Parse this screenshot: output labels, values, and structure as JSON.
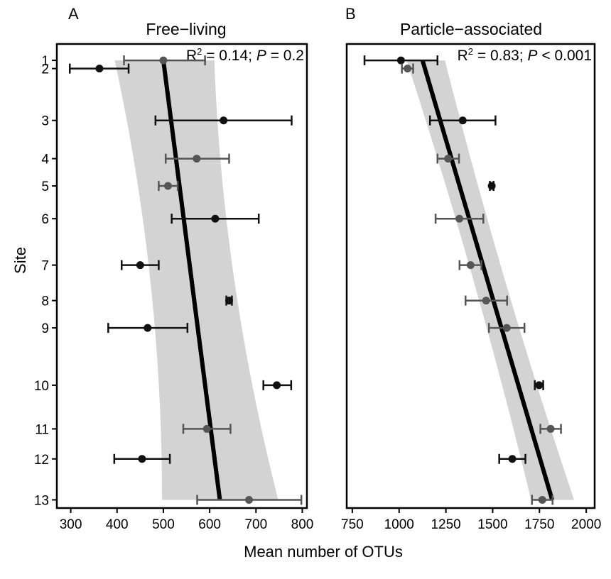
{
  "figure": {
    "ylabel": "Site",
    "xlabel": "Mean number of OTUs",
    "colors": {
      "band": "#d3d3d3",
      "fit_line": "#000000",
      "point_dark": "#111111",
      "point_gray": "#555555"
    }
  },
  "chart_data": [
    {
      "type": "scatter",
      "panel": "A",
      "title": "Free−living",
      "stat": {
        "r2_prefix": "R",
        "r2_sup": "2",
        "r2_value": " = 0.14; ",
        "p_symbol": "P",
        "p_value": " = 0.2"
      },
      "xlabel": "Mean number of OTUs",
      "ylabel": "Site",
      "xlim": [
        270,
        810
      ],
      "xticks": [
        300,
        400,
        500,
        600,
        700,
        800
      ],
      "xtick_labels": [
        "300",
        "400",
        "500",
        "600",
        "700",
        "800"
      ],
      "y_sites": [
        1,
        2,
        3,
        4,
        5,
        6,
        7,
        8,
        9,
        10,
        11,
        12,
        13
      ],
      "y_positions": [
        1.0,
        1.3,
        3.2,
        4.6,
        5.6,
        6.8,
        8.5,
        9.8,
        10.8,
        12.9,
        14.5,
        15.6,
        17.1
      ],
      "ylim": [
        0.4,
        17.4
      ],
      "points": [
        {
          "site": "1",
          "mean": 500,
          "lo": 415,
          "hi": 590,
          "shade": "gray"
        },
        {
          "site": "2",
          "mean": 362,
          "lo": 298,
          "hi": 425,
          "shade": "dark"
        },
        {
          "site": "3",
          "mean": 630,
          "lo": 483,
          "hi": 777,
          "shade": "dark"
        },
        {
          "site": "4",
          "mean": 572,
          "lo": 505,
          "hi": 642,
          "shade": "gray"
        },
        {
          "site": "5",
          "mean": 510,
          "lo": 490,
          "hi": 531,
          "shade": "gray"
        },
        {
          "site": "6",
          "mean": 612,
          "lo": 518,
          "hi": 706,
          "shade": "dark"
        },
        {
          "site": "7",
          "mean": 450,
          "lo": 410,
          "hi": 490,
          "shade": "dark"
        },
        {
          "site": "8",
          "mean": 642,
          "lo": 636,
          "hi": 648,
          "shade": "dark"
        },
        {
          "site": "9",
          "mean": 466,
          "lo": 381,
          "hi": 552,
          "shade": "dark"
        },
        {
          "site": "10",
          "mean": 745,
          "lo": 716,
          "hi": 776,
          "shade": "dark"
        },
        {
          "site": "11",
          "mean": 594,
          "lo": 543,
          "hi": 645,
          "shade": "gray"
        },
        {
          "site": "12",
          "mean": 454,
          "lo": 394,
          "hi": 514,
          "shade": "dark"
        },
        {
          "site": "13",
          "mean": 685,
          "lo": 573,
          "hi": 798,
          "shade": "gray"
        }
      ],
      "fit": {
        "x_top": 500,
        "x_bottom": 622
      },
      "band": {
        "top_lo": 395,
        "top_hi": 610,
        "bottom_lo": 497,
        "bottom_hi": 748
      }
    },
    {
      "type": "scatter",
      "panel": "B",
      "title": "Particle−associated",
      "stat": {
        "r2_prefix": "R",
        "r2_sup": "2",
        "r2_value": " = 0.83; ",
        "p_symbol": "P",
        "p_value": " < 0.001"
      },
      "xlabel": "Mean number of OTUs",
      "ylabel": "Site",
      "xlim": [
        720,
        2045
      ],
      "xticks": [
        750,
        1000,
        1250,
        1500,
        1750,
        2000
      ],
      "xtick_labels": [
        "750",
        "1000",
        "1250",
        "1500",
        "1750",
        "2000"
      ],
      "y_sites": [
        1,
        2,
        3,
        4,
        5,
        6,
        7,
        8,
        9,
        10,
        11,
        12,
        13
      ],
      "y_positions": [
        1.0,
        1.3,
        3.2,
        4.6,
        5.6,
        6.8,
        8.5,
        9.8,
        10.8,
        12.9,
        14.5,
        15.6,
        17.1
      ],
      "ylim": [
        0.4,
        17.4
      ],
      "points": [
        {
          "site": "1",
          "mean": 1010,
          "lo": 815,
          "hi": 1205,
          "shade": "dark"
        },
        {
          "site": "2",
          "mean": 1045,
          "lo": 1015,
          "hi": 1075,
          "shade": "gray"
        },
        {
          "site": "3",
          "mean": 1340,
          "lo": 1165,
          "hi": 1515,
          "shade": "dark"
        },
        {
          "site": "4",
          "mean": 1262,
          "lo": 1205,
          "hi": 1320,
          "shade": "gray"
        },
        {
          "site": "5",
          "mean": 1495,
          "lo": 1485,
          "hi": 1505,
          "shade": "dark"
        },
        {
          "site": "6",
          "mean": 1322,
          "lo": 1195,
          "hi": 1450,
          "shade": "gray"
        },
        {
          "site": "7",
          "mean": 1382,
          "lo": 1323,
          "hi": 1440,
          "shade": "gray"
        },
        {
          "site": "8",
          "mean": 1465,
          "lo": 1355,
          "hi": 1577,
          "shade": "gray"
        },
        {
          "site": "9",
          "mean": 1575,
          "lo": 1480,
          "hi": 1670,
          "shade": "gray"
        },
        {
          "site": "10",
          "mean": 1748,
          "lo": 1725,
          "hi": 1770,
          "shade": "dark"
        },
        {
          "site": "11",
          "mean": 1810,
          "lo": 1755,
          "hi": 1865,
          "shade": "gray"
        },
        {
          "site": "12",
          "mean": 1605,
          "lo": 1535,
          "hi": 1675,
          "shade": "dark"
        },
        {
          "site": "13",
          "mean": 1765,
          "lo": 1710,
          "hi": 1820,
          "shade": "gray"
        }
      ],
      "fit": {
        "x_top": 1125,
        "x_bottom": 1818
      },
      "band": {
        "top_lo": 1040,
        "top_hi": 1245,
        "bottom_lo": 1705,
        "bottom_hi": 1935
      }
    }
  ]
}
